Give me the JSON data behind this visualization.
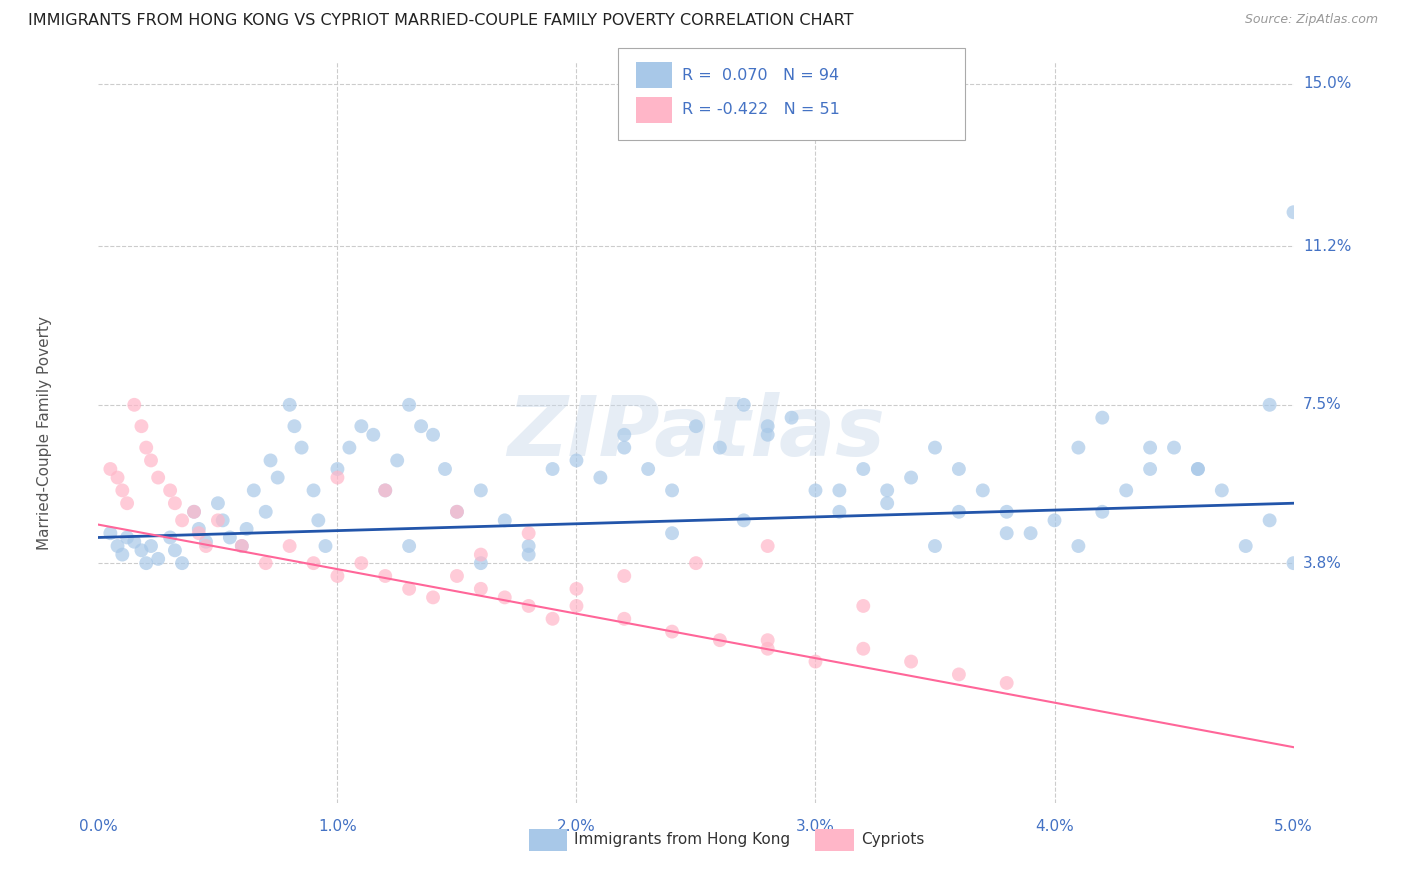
{
  "title": "IMMIGRANTS FROM HONG KONG VS CYPRIOT MARRIED-COUPLE FAMILY POVERTY CORRELATION CHART",
  "source": "Source: ZipAtlas.com",
  "ylabel": "Married-Couple Family Poverty",
  "watermark": "ZIPatlas",
  "legend_hk_r": "R =  0.070",
  "legend_hk_n": "N = 94",
  "legend_cy_r": "R = -0.422",
  "legend_cy_n": "N = 51",
  "color_hk": "#a8c8e8",
  "color_cy": "#ffb6c8",
  "color_hk_line": "#2255aa",
  "color_cy_line": "#ff6699",
  "color_axis": "#4472c4",
  "hk_x": [
    0.0005,
    0.0008,
    0.001,
    0.0012,
    0.0015,
    0.0018,
    0.002,
    0.0022,
    0.0025,
    0.003,
    0.0032,
    0.0035,
    0.004,
    0.0042,
    0.0045,
    0.005,
    0.0052,
    0.0055,
    0.006,
    0.0062,
    0.0065,
    0.007,
    0.0072,
    0.0075,
    0.008,
    0.0082,
    0.0085,
    0.009,
    0.0092,
    0.0095,
    0.01,
    0.0105,
    0.011,
    0.0115,
    0.012,
    0.0125,
    0.013,
    0.0135,
    0.014,
    0.0145,
    0.015,
    0.016,
    0.017,
    0.018,
    0.019,
    0.02,
    0.021,
    0.022,
    0.023,
    0.024,
    0.025,
    0.026,
    0.027,
    0.028,
    0.029,
    0.03,
    0.031,
    0.032,
    0.033,
    0.034,
    0.035,
    0.036,
    0.037,
    0.038,
    0.039,
    0.04,
    0.041,
    0.042,
    0.043,
    0.044,
    0.045,
    0.046,
    0.047,
    0.048,
    0.049,
    0.05,
    0.042,
    0.044,
    0.038,
    0.046,
    0.033,
    0.028,
    0.035,
    0.022,
    0.018,
    0.041,
    0.036,
    0.027,
    0.016,
    0.049,
    0.031,
    0.024,
    0.013,
    0.05
  ],
  "hk_y": [
    0.045,
    0.042,
    0.04,
    0.044,
    0.043,
    0.041,
    0.038,
    0.042,
    0.039,
    0.044,
    0.041,
    0.038,
    0.05,
    0.046,
    0.043,
    0.052,
    0.048,
    0.044,
    0.042,
    0.046,
    0.055,
    0.05,
    0.062,
    0.058,
    0.075,
    0.07,
    0.065,
    0.055,
    0.048,
    0.042,
    0.06,
    0.065,
    0.07,
    0.068,
    0.055,
    0.062,
    0.075,
    0.07,
    0.068,
    0.06,
    0.05,
    0.055,
    0.048,
    0.042,
    0.06,
    0.062,
    0.058,
    0.065,
    0.06,
    0.055,
    0.07,
    0.065,
    0.075,
    0.068,
    0.072,
    0.055,
    0.05,
    0.06,
    0.052,
    0.058,
    0.065,
    0.06,
    0.055,
    0.05,
    0.045,
    0.048,
    0.042,
    0.05,
    0.055,
    0.06,
    0.065,
    0.06,
    0.055,
    0.042,
    0.048,
    0.038,
    0.072,
    0.065,
    0.045,
    0.06,
    0.055,
    0.07,
    0.042,
    0.068,
    0.04,
    0.065,
    0.05,
    0.048,
    0.038,
    0.075,
    0.055,
    0.045,
    0.042,
    0.12
  ],
  "cy_x": [
    0.0005,
    0.0008,
    0.001,
    0.0012,
    0.0015,
    0.0018,
    0.002,
    0.0022,
    0.0025,
    0.003,
    0.0032,
    0.0035,
    0.004,
    0.0042,
    0.0045,
    0.005,
    0.006,
    0.007,
    0.008,
    0.009,
    0.01,
    0.011,
    0.012,
    0.013,
    0.014,
    0.015,
    0.016,
    0.017,
    0.018,
    0.019,
    0.02,
    0.022,
    0.024,
    0.026,
    0.028,
    0.03,
    0.032,
    0.034,
    0.036,
    0.038,
    0.025,
    0.028,
    0.032,
    0.018,
    0.022,
    0.015,
    0.02,
    0.012,
    0.016,
    0.01,
    0.028
  ],
  "cy_y": [
    0.06,
    0.058,
    0.055,
    0.052,
    0.075,
    0.07,
    0.065,
    0.062,
    0.058,
    0.055,
    0.052,
    0.048,
    0.05,
    0.045,
    0.042,
    0.048,
    0.042,
    0.038,
    0.042,
    0.038,
    0.035,
    0.038,
    0.035,
    0.032,
    0.03,
    0.035,
    0.032,
    0.03,
    0.028,
    0.025,
    0.028,
    0.025,
    0.022,
    0.02,
    0.018,
    0.015,
    0.018,
    0.015,
    0.012,
    0.01,
    0.038,
    0.042,
    0.028,
    0.045,
    0.035,
    0.05,
    0.032,
    0.055,
    0.04,
    0.058,
    0.02
  ],
  "hk_line_x": [
    0.0,
    0.05
  ],
  "hk_line_y": [
    0.044,
    0.052
  ],
  "cy_line_x": [
    0.0,
    0.05
  ],
  "cy_line_y": [
    0.047,
    -0.005
  ],
  "xmin": 0.0,
  "xmax": 0.05,
  "ymin": -0.018,
  "ymax": 0.155,
  "xtick_positions": [
    0.0,
    0.01,
    0.02,
    0.03,
    0.04,
    0.05
  ],
  "xtick_labels": [
    "0.0%",
    "1.0%",
    "2.0%",
    "3.0%",
    "4.0%",
    "5.0%"
  ],
  "ytick_positions": [
    0.038,
    0.075,
    0.112,
    0.15
  ],
  "ytick_labels": [
    "3.8%",
    "7.5%",
    "11.2%",
    "15.0%"
  ],
  "grid_color": "#cccccc",
  "marker_size": 100,
  "marker_alpha": 0.7
}
